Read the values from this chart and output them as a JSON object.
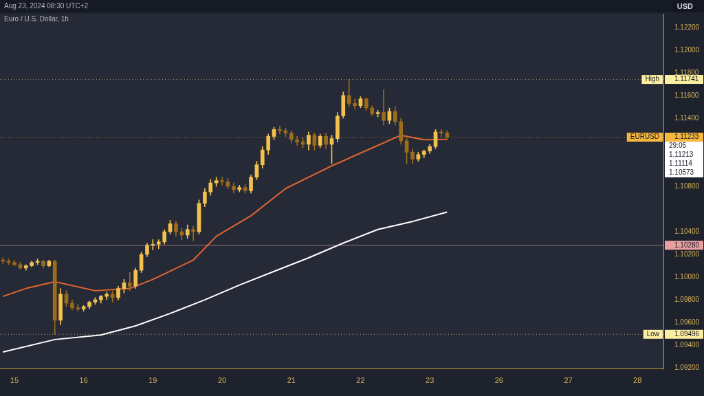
{
  "chart_data": {
    "type": "candlestick",
    "title": "Euro / U.S. Dollar, 1h",
    "subtitle": "Aug 23, 2024 08:30 UTC+2",
    "ylabel": "USD",
    "categories": [
      null,
      null,
      "15",
      null,
      null,
      null,
      null,
      null,
      null,
      null,
      null,
      null,
      null,
      null,
      "16",
      null,
      null,
      null,
      null,
      null,
      null,
      null,
      null,
      null,
      null,
      null,
      "19",
      null,
      null,
      null,
      null,
      null,
      null,
      null,
      null,
      null,
      null,
      null,
      "20",
      null,
      null,
      null,
      null,
      null,
      null,
      null,
      null,
      null,
      null,
      null,
      "21",
      null,
      null,
      null,
      null,
      null,
      null,
      null,
      null,
      null,
      null,
      null,
      "22",
      null,
      null,
      null,
      null,
      null,
      null,
      null,
      null,
      null,
      null,
      null,
      "23",
      null,
      null,
      null,
      null,
      null,
      null,
      null,
      null,
      null,
      null,
      null,
      "26",
      null,
      null,
      null,
      null,
      null,
      null,
      null,
      null,
      null,
      null,
      null,
      "27",
      null,
      null,
      null,
      null,
      null,
      null,
      null,
      null,
      null,
      null,
      null,
      "28",
      null,
      null,
      null,
      null
    ],
    "colors": [
      "#9c6b1c",
      "#9c6b1c",
      "#9c6b1c",
      "#9c6b1c",
      "#f2c14e",
      "#f2c14e",
      "#f2c14e",
      "#9c6b1c",
      "#f2c14e",
      "#9c6b1c",
      "#f2c14e",
      "#9c6b1c",
      "#9c6b1c",
      "#9c6b1c",
      "#f2c14e",
      "#f2c14e",
      "#f2c14e",
      "#f2c14e",
      "#f2c14e",
      "#9c6b1c",
      "#f2c14e",
      "#f2c14e",
      "#9c6b1c",
      "#f2c14e",
      "#f2c14e",
      "#f2c14e",
      "#f2c14e",
      "#f2c14e",
      "#f2c14e",
      "#f2c14e",
      "#9c6b1c",
      "#9c6b1c",
      "#f2c14e",
      "#9c6b1c",
      "#f2c14e",
      "#f2c14e",
      "#f2c14e",
      "#f2c14e",
      "#9c6b1c",
      "#9c6b1c",
      "#9c6b1c",
      "#f2c14e",
      "#9c6b1c",
      "#f2c14e",
      "#f2c14e",
      "#f2c14e",
      "#f2c14e",
      "#f2c14e",
      "#9c6b1c",
      "#9c6b1c",
      "#9c6b1c",
      "#9c6b1c",
      "#9c6b1c",
      "#f2c14e",
      "#9c6b1c",
      "#f2c14e",
      "#9c6b1c",
      "#f2c14e",
      "#f2c14e",
      "#f2c14e",
      "#9c6b1c",
      "#9c6b1c",
      "#f2c14e",
      "#9c6b1c",
      "#9c6b1c",
      "#f2c14e",
      "#9c6b1c",
      "#f2c14e",
      "#9c6b1c",
      "#9c6b1c",
      "#9c6b1c",
      "#9c6b1c",
      "#f2c14e",
      "#f2c14e",
      "#f2c14e",
      "#f2c14e",
      "#9c6b1c",
      "#9c6b1c",
      null,
      null,
      null,
      null,
      null,
      null,
      null,
      null,
      null,
      null,
      null,
      null,
      null,
      null,
      null,
      null,
      null,
      null,
      null,
      null,
      null,
      null,
      null,
      null,
      null,
      null,
      null,
      null,
      null,
      null,
      null,
      null,
      null,
      null,
      null,
      null,
      null
    ],
    "ohlc": [
      [
        1.1015,
        1.1017,
        1.1012,
        1.1014
      ],
      [
        1.1014,
        1.1016,
        1.1011,
        1.1013
      ],
      [
        1.1013,
        1.1015,
        1.101,
        1.1011
      ],
      [
        1.1011,
        1.1013,
        1.1007,
        1.1008
      ],
      [
        1.1008,
        1.1011,
        1.1006,
        1.101
      ],
      [
        1.101,
        1.1014,
        1.1009,
        1.1013
      ],
      [
        1.1013,
        1.1016,
        1.1011,
        1.1014
      ],
      [
        1.1014,
        1.1015,
        1.1008,
        1.101
      ],
      [
        1.101,
        1.1015,
        1.1009,
        1.1014
      ],
      [
        1.1014,
        1.1015,
        1.09496,
        1.0962
      ],
      [
        1.0962,
        1.099,
        1.0958,
        1.0985
      ],
      [
        1.0985,
        1.0988,
        1.0974,
        1.0977
      ],
      [
        1.0977,
        1.098,
        1.0971,
        1.0973
      ],
      [
        1.0973,
        1.0976,
        1.097,
        1.0972
      ],
      [
        1.0972,
        1.0975,
        1.097,
        1.0974
      ],
      [
        1.0974,
        1.0979,
        1.0972,
        1.0978
      ],
      [
        1.0978,
        1.0982,
        1.0976,
        1.098
      ],
      [
        1.098,
        1.0984,
        1.0977,
        1.0983
      ],
      [
        1.0983,
        1.0987,
        1.098,
        1.0985
      ],
      [
        1.0985,
        1.0988,
        1.0978,
        1.0982
      ],
      [
        1.0982,
        1.0992,
        1.098,
        1.099
      ],
      [
        1.099,
        1.0998,
        1.0986,
        1.0995
      ],
      [
        1.0995,
        1.1004,
        1.0988,
        1.0992
      ],
      [
        1.0992,
        1.1008,
        1.099,
        1.1006
      ],
      [
        1.1006,
        1.1022,
        1.1004,
        1.102
      ],
      [
        1.102,
        1.103,
        1.1018,
        1.1028
      ],
      [
        1.1028,
        1.1033,
        1.1024,
        1.1029
      ],
      [
        1.1029,
        1.1033,
        1.1025,
        1.1031
      ],
      [
        1.1031,
        1.1042,
        1.1029,
        1.104
      ],
      [
        1.104,
        1.105,
        1.1038,
        1.1047
      ],
      [
        1.1047,
        1.1049,
        1.1036,
        1.104
      ],
      [
        1.104,
        1.1043,
        1.1033,
        1.1037
      ],
      [
        1.1037,
        1.1046,
        1.1034,
        1.1042
      ],
      [
        1.1042,
        1.1045,
        1.1032,
        1.104
      ],
      [
        1.104,
        1.1068,
        1.1038,
        1.1065
      ],
      [
        1.1065,
        1.1078,
        1.1062,
        1.1075
      ],
      [
        1.1075,
        1.1086,
        1.1072,
        1.1083
      ],
      [
        1.1083,
        1.1088,
        1.108,
        1.1085
      ],
      [
        1.1085,
        1.1088,
        1.1081,
        1.1084
      ],
      [
        1.1084,
        1.1087,
        1.1078,
        1.108
      ],
      [
        1.108,
        1.1083,
        1.1074,
        1.1077
      ],
      [
        1.1077,
        1.1081,
        1.1075,
        1.1079
      ],
      [
        1.1079,
        1.1082,
        1.1074,
        1.1076
      ],
      [
        1.1076,
        1.109,
        1.1074,
        1.1088
      ],
      [
        1.1088,
        1.1102,
        1.1086,
        1.1099
      ],
      [
        1.1099,
        1.1115,
        1.1096,
        1.1112
      ],
      [
        1.1112,
        1.1126,
        1.1108,
        1.1124
      ],
      [
        1.1124,
        1.1132,
        1.1121,
        1.113
      ],
      [
        1.113,
        1.1133,
        1.1126,
        1.1129
      ],
      [
        1.1129,
        1.1131,
        1.1124,
        1.1127
      ],
      [
        1.1127,
        1.1129,
        1.1118,
        1.1121
      ],
      [
        1.1121,
        1.1124,
        1.1116,
        1.1119
      ],
      [
        1.1119,
        1.1123,
        1.1114,
        1.1117
      ],
      [
        1.1117,
        1.1128,
        1.1112,
        1.1125
      ],
      [
        1.1125,
        1.1127,
        1.1112,
        1.1116
      ],
      [
        1.1116,
        1.1126,
        1.1114,
        1.1124
      ],
      [
        1.1124,
        1.1127,
        1.1113,
        1.1117
      ],
      [
        1.1117,
        1.1125,
        1.11,
        1.1122
      ],
      [
        1.1122,
        1.1145,
        1.1119,
        1.1142
      ],
      [
        1.1142,
        1.1163,
        1.114,
        1.116
      ],
      [
        1.116,
        1.11741,
        1.115,
        1.1153
      ],
      [
        1.1153,
        1.1157,
        1.1148,
        1.1151
      ],
      [
        1.1151,
        1.1159,
        1.1149,
        1.1157
      ],
      [
        1.1157,
        1.1158,
        1.1147,
        1.1149
      ],
      [
        1.1149,
        1.1151,
        1.1142,
        1.1144
      ],
      [
        1.1144,
        1.1147,
        1.1141,
        1.1145
      ],
      [
        1.1145,
        1.1165,
        1.1134,
        1.1138
      ],
      [
        1.1138,
        1.1149,
        1.1135,
        1.1146
      ],
      [
        1.1146,
        1.115,
        1.1134,
        1.1137
      ],
      [
        1.1137,
        1.114,
        1.1117,
        1.112
      ],
      [
        1.112,
        1.1122,
        1.11,
        1.111
      ],
      [
        1.111,
        1.1113,
        1.11,
        1.1104
      ],
      [
        1.1104,
        1.111,
        1.1102,
        1.1108
      ],
      [
        1.1108,
        1.1112,
        1.1105,
        1.1111
      ],
      [
        1.1111,
        1.1117,
        1.1109,
        1.1115
      ],
      [
        1.1115,
        1.113,
        1.1113,
        1.1128
      ],
      [
        1.1128,
        1.113,
        1.1124,
        1.1127
      ],
      [
        1.1127,
        1.1129,
        1.1121,
        1.11233
      ],
      null,
      null,
      null,
      null,
      null,
      null,
      null,
      null,
      null,
      null,
      null,
      null,
      null,
      null,
      null,
      null,
      null,
      null,
      null,
      null,
      null,
      null,
      null,
      null,
      null,
      null,
      null,
      null,
      null,
      null,
      null,
      null,
      null,
      null,
      null,
      null,
      null
    ],
    "series": [
      {
        "type": "line",
        "color": "#e0652d",
        "values": [
          1.0983,
          null,
          null,
          null,
          1.099,
          null,
          null,
          null,
          null,
          1.0996,
          null,
          null,
          null,
          null,
          null,
          null,
          1.0988,
          null,
          null,
          null,
          null,
          null,
          1.099,
          null,
          null,
          null,
          1.0998,
          null,
          null,
          null,
          null,
          null,
          null,
          1.1015,
          null,
          null,
          null,
          1.1036,
          null,
          null,
          null,
          null,
          null,
          1.1054,
          null,
          null,
          null,
          null,
          null,
          1.1078,
          null,
          null,
          null,
          null,
          null,
          null,
          null,
          1.1098,
          null,
          null,
          null,
          null,
          null,
          null,
          null,
          1.1116,
          null,
          null,
          null,
          1.1125,
          null,
          null,
          null,
          1.1121,
          null,
          null,
          null,
          1.11213,
          null,
          null,
          null,
          null,
          null,
          null,
          null,
          null,
          null,
          null,
          null,
          null,
          null,
          null,
          null,
          null,
          null,
          null,
          null,
          null,
          null,
          null,
          null,
          null,
          null,
          null,
          null,
          null,
          null,
          null,
          null,
          null,
          null,
          null,
          null,
          null,
          null
        ]
      },
      {
        "type": "line",
        "color": "#ffffff",
        "values": [
          1.0934,
          null,
          null,
          null,
          null,
          null,
          null,
          null,
          null,
          1.0945,
          null,
          null,
          null,
          null,
          null,
          null,
          null,
          1.0949,
          null,
          null,
          null,
          null,
          null,
          1.0957,
          null,
          null,
          null,
          null,
          null,
          1.0968,
          null,
          null,
          null,
          null,
          null,
          1.098,
          null,
          null,
          null,
          null,
          null,
          1.0993,
          null,
          null,
          null,
          null,
          null,
          1.1005,
          null,
          null,
          null,
          null,
          null,
          1.1017,
          null,
          null,
          null,
          null,
          null,
          1.103,
          null,
          null,
          null,
          null,
          null,
          1.1042,
          null,
          null,
          null,
          null,
          null,
          1.1049,
          null,
          null,
          null,
          null,
          null,
          1.10573,
          null,
          null,
          null,
          null,
          null,
          null,
          null,
          null,
          null,
          null,
          null,
          null,
          null,
          null,
          null,
          null,
          null,
          null,
          null,
          null,
          null,
          null,
          null,
          null,
          null,
          null,
          null,
          null,
          null,
          null,
          null,
          null,
          null,
          null,
          null,
          null,
          null
        ]
      }
    ],
    "ylim": [
      1.0919,
      1.1232
    ],
    "yticks": [
      {
        "value": 1.092,
        "label": "1.09200"
      },
      {
        "value": 1.094,
        "label": "1.09400"
      },
      {
        "value": 1.09496,
        "label": "1.09496"
      },
      {
        "value": 1.096,
        "label": "1.09600"
      },
      {
        "value": 1.098,
        "label": "1.09800"
      },
      {
        "value": 1.1,
        "label": "1.10000"
      },
      {
        "value": 1.102,
        "label": "1.10200"
      },
      {
        "value": 1.1028,
        "label": "1.10280"
      },
      {
        "value": 1.104,
        "label": "1.10400"
      },
      {
        "value": 1.108,
        "label": "1.10800"
      },
      {
        "value": 1.11233,
        "label": "1.11233"
      },
      {
        "value": 1.11741,
        "label": "1.11741"
      },
      {
        "value": 1.114,
        "label": "1.11400"
      },
      {
        "value": 1.116,
        "label": "1.11600"
      },
      {
        "value": 1.118,
        "label": "1.11800"
      },
      {
        "value": 1.12,
        "label": "1.12000"
      },
      {
        "value": 1.122,
        "label": "1.12200"
      }
    ],
    "ref_lines": [
      {
        "axis": "y",
        "value": 1.11741,
        "label": "High",
        "color": "#fbeea0",
        "line_style": "dotted"
      },
      {
        "axis": "y",
        "value": 1.09496,
        "label": "Low",
        "color": "#fbeea0",
        "line_style": "dotted"
      },
      {
        "axis": "y",
        "value": 1.1028,
        "color": "#e8a0a0",
        "line_style": "solid"
      },
      {
        "axis": "y",
        "value": 1.11233,
        "label": "EURUSD",
        "color": "#f5b83d",
        "line_style": "dotted"
      }
    ],
    "annotations": [
      "29:05",
      "1.11213",
      "1.11114",
      "1.10573"
    ]
  }
}
